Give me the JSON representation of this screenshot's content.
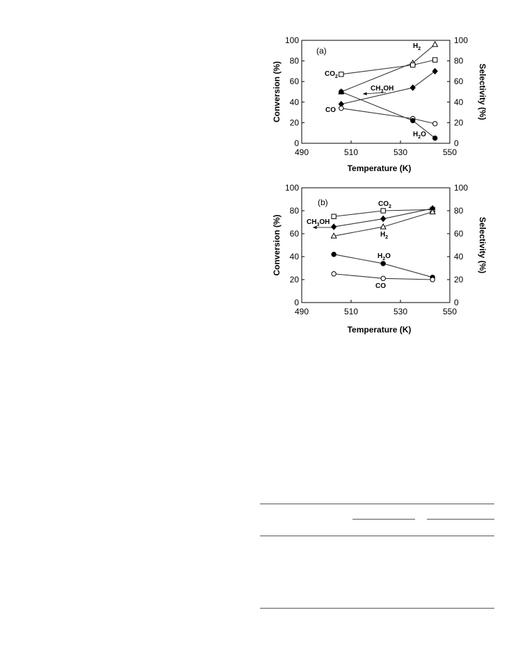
{
  "chart_data": [
    {
      "type": "line",
      "panel_label": "(a)",
      "xlabel": "Temperature (K)",
      "ylabel": "Conversion (%)",
      "y2label": "Selectivity (%)",
      "xlim": [
        490,
        550
      ],
      "ylim": [
        0,
        100
      ],
      "y2lim": [
        0,
        100
      ],
      "xticks": [
        490,
        510,
        530,
        550
      ],
      "yticks": [
        0,
        20,
        40,
        60,
        80,
        100
      ],
      "series": [
        {
          "name": "H₂",
          "marker": "triangle-open",
          "x": [
            506,
            535,
            544
          ],
          "y": [
            50,
            78,
            96
          ]
        },
        {
          "name": "CO₂",
          "marker": "square-open",
          "x": [
            506,
            535,
            544
          ],
          "y": [
            67,
            76,
            81
          ]
        },
        {
          "name": "CH₃OH",
          "marker": "diamond-filled",
          "x": [
            506,
            535,
            544
          ],
          "y": [
            38,
            54,
            70
          ]
        },
        {
          "name": "CO",
          "marker": "circle-open",
          "x": [
            506,
            535,
            544
          ],
          "y": [
            34,
            24,
            19
          ]
        },
        {
          "name": "H₂O",
          "marker": "circle-filled",
          "x": [
            506,
            535,
            544
          ],
          "y": [
            50,
            22,
            5
          ]
        }
      ]
    },
    {
      "type": "line",
      "panel_label": "(b)",
      "xlabel": "Temperature (K)",
      "ylabel": "Conversion (%)",
      "y2label": "Selectivity (%)",
      "xlim": [
        490,
        550
      ],
      "ylim": [
        0,
        100
      ],
      "y2lim": [
        0,
        100
      ],
      "xticks": [
        490,
        510,
        530,
        550
      ],
      "yticks": [
        0,
        20,
        40,
        60,
        80,
        100
      ],
      "series": [
        {
          "name": "CO₂",
          "marker": "square-open",
          "x": [
            503,
            523,
            543
          ],
          "y": [
            75,
            80,
            81
          ]
        },
        {
          "name": "CH₃OH",
          "marker": "diamond-filled",
          "x": [
            503,
            523,
            543
          ],
          "y": [
            66,
            73,
            82
          ]
        },
        {
          "name": "H₂",
          "marker": "triangle-open",
          "x": [
            503,
            523,
            543
          ],
          "y": [
            58,
            66,
            79
          ]
        },
        {
          "name": "H₂O",
          "marker": "circle-filled",
          "x": [
            503,
            523,
            543
          ],
          "y": [
            42,
            34,
            22
          ]
        },
        {
          "name": "CO",
          "marker": "circle-open",
          "x": [
            503,
            523,
            543
          ],
          "y": [
            25,
            21,
            20
          ]
        }
      ]
    }
  ]
}
